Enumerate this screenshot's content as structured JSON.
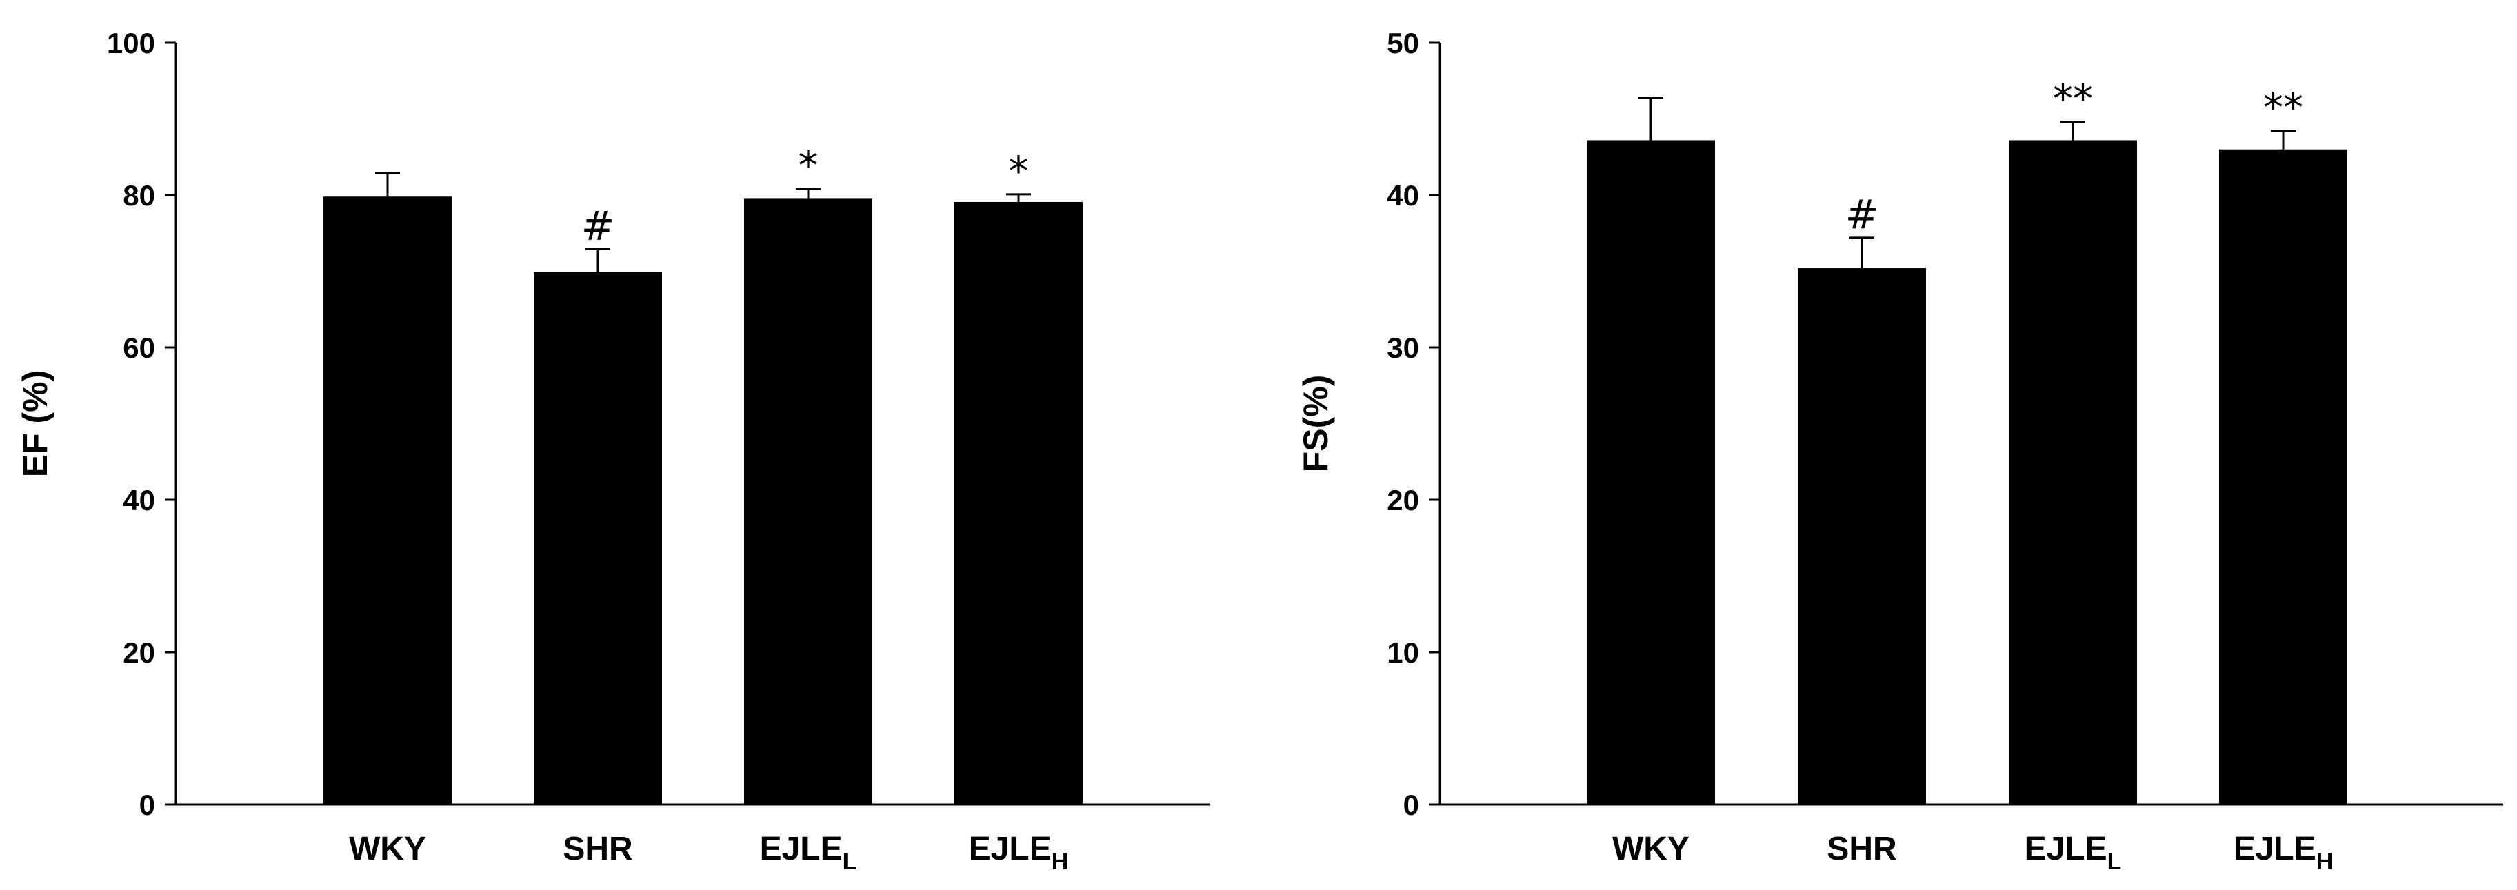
{
  "chart_data": [
    {
      "type": "bar",
      "ylabel": "EF (%)",
      "xlabel": "",
      "ylim": [
        0,
        100
      ],
      "yticks": [
        0,
        20,
        40,
        60,
        80,
        100
      ],
      "categories": [
        {
          "main": "WKY",
          "sub": ""
        },
        {
          "main": "SHR",
          "sub": ""
        },
        {
          "main": "EJLE",
          "sub": "L"
        },
        {
          "main": "EJLE",
          "sub": "H"
        }
      ],
      "values": [
        79.8,
        69.9,
        79.6,
        79.1
      ],
      "errors": [
        3.1,
        3.0,
        1.2,
        1.0
      ],
      "annotations": [
        "",
        "#",
        "*",
        "*"
      ],
      "bar_color": "#000000",
      "grid": false
    },
    {
      "type": "bar",
      "ylabel": "FS(%)",
      "xlabel": "",
      "ylim": [
        0,
        50
      ],
      "yticks": [
        0,
        10,
        20,
        30,
        40,
        50
      ],
      "categories": [
        {
          "main": "WKY",
          "sub": ""
        },
        {
          "main": "SHR",
          "sub": ""
        },
        {
          "main": "EJLE",
          "sub": "L"
        },
        {
          "main": "EJLE",
          "sub": "H"
        }
      ],
      "values": [
        43.6,
        35.2,
        43.6,
        43.0
      ],
      "errors": [
        2.8,
        2.0,
        1.2,
        1.2
      ],
      "annotations": [
        "",
        "#",
        "**",
        "**"
      ],
      "bar_color": "#000000",
      "grid": false
    }
  ]
}
